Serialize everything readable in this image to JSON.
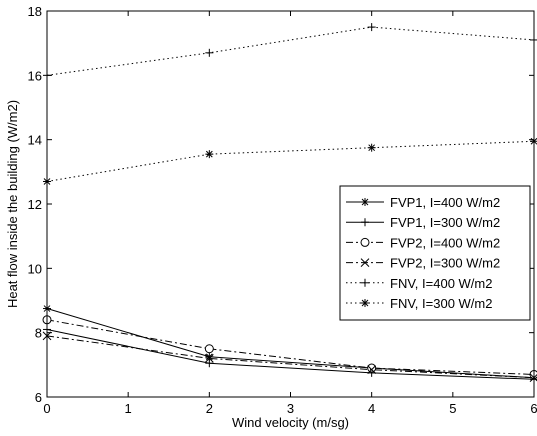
{
  "chart_data": {
    "type": "line",
    "title": "",
    "xlabel": "Wind velocity (m/sg)",
    "ylabel": "Heat flow inside the building  (W/m2)",
    "xlim": [
      0,
      6
    ],
    "ylim": [
      6,
      18
    ],
    "x_ticks": [
      "0",
      "1",
      "2",
      "3",
      "4",
      "5",
      "6"
    ],
    "y_ticks": [
      "6",
      "8",
      "10",
      "12",
      "14",
      "16",
      "18"
    ],
    "grid": false,
    "legend_position": "right",
    "x": [
      0,
      2,
      4,
      6
    ],
    "series": [
      {
        "name": "FVP1, I=400 W/m2",
        "values": [
          8.75,
          7.25,
          6.9,
          6.6
        ],
        "line_style": "solid",
        "marker": "asterisk"
      },
      {
        "name": "FVP1, I=300 W/m2",
        "values": [
          8.1,
          7.05,
          6.75,
          6.55
        ],
        "line_style": "solid",
        "marker": "plus"
      },
      {
        "name": "FVP2, I=400 W/m2",
        "values": [
          8.4,
          7.5,
          6.9,
          6.7
        ],
        "line_style": "dashdot",
        "marker": "circle"
      },
      {
        "name": "FVP2, I=300 W/m2",
        "values": [
          7.9,
          7.2,
          6.85,
          6.6
        ],
        "line_style": "dashdot",
        "marker": "x"
      },
      {
        "name": "FNV, I=400 W/m2",
        "values": [
          16.0,
          16.7,
          17.5,
          17.1
        ],
        "line_style": "dotted",
        "marker": "plus"
      },
      {
        "name": "FNV, I=300 W/m2",
        "values": [
          12.7,
          13.55,
          13.75,
          13.95
        ],
        "line_style": "dotted",
        "marker": "asterisk"
      }
    ]
  }
}
